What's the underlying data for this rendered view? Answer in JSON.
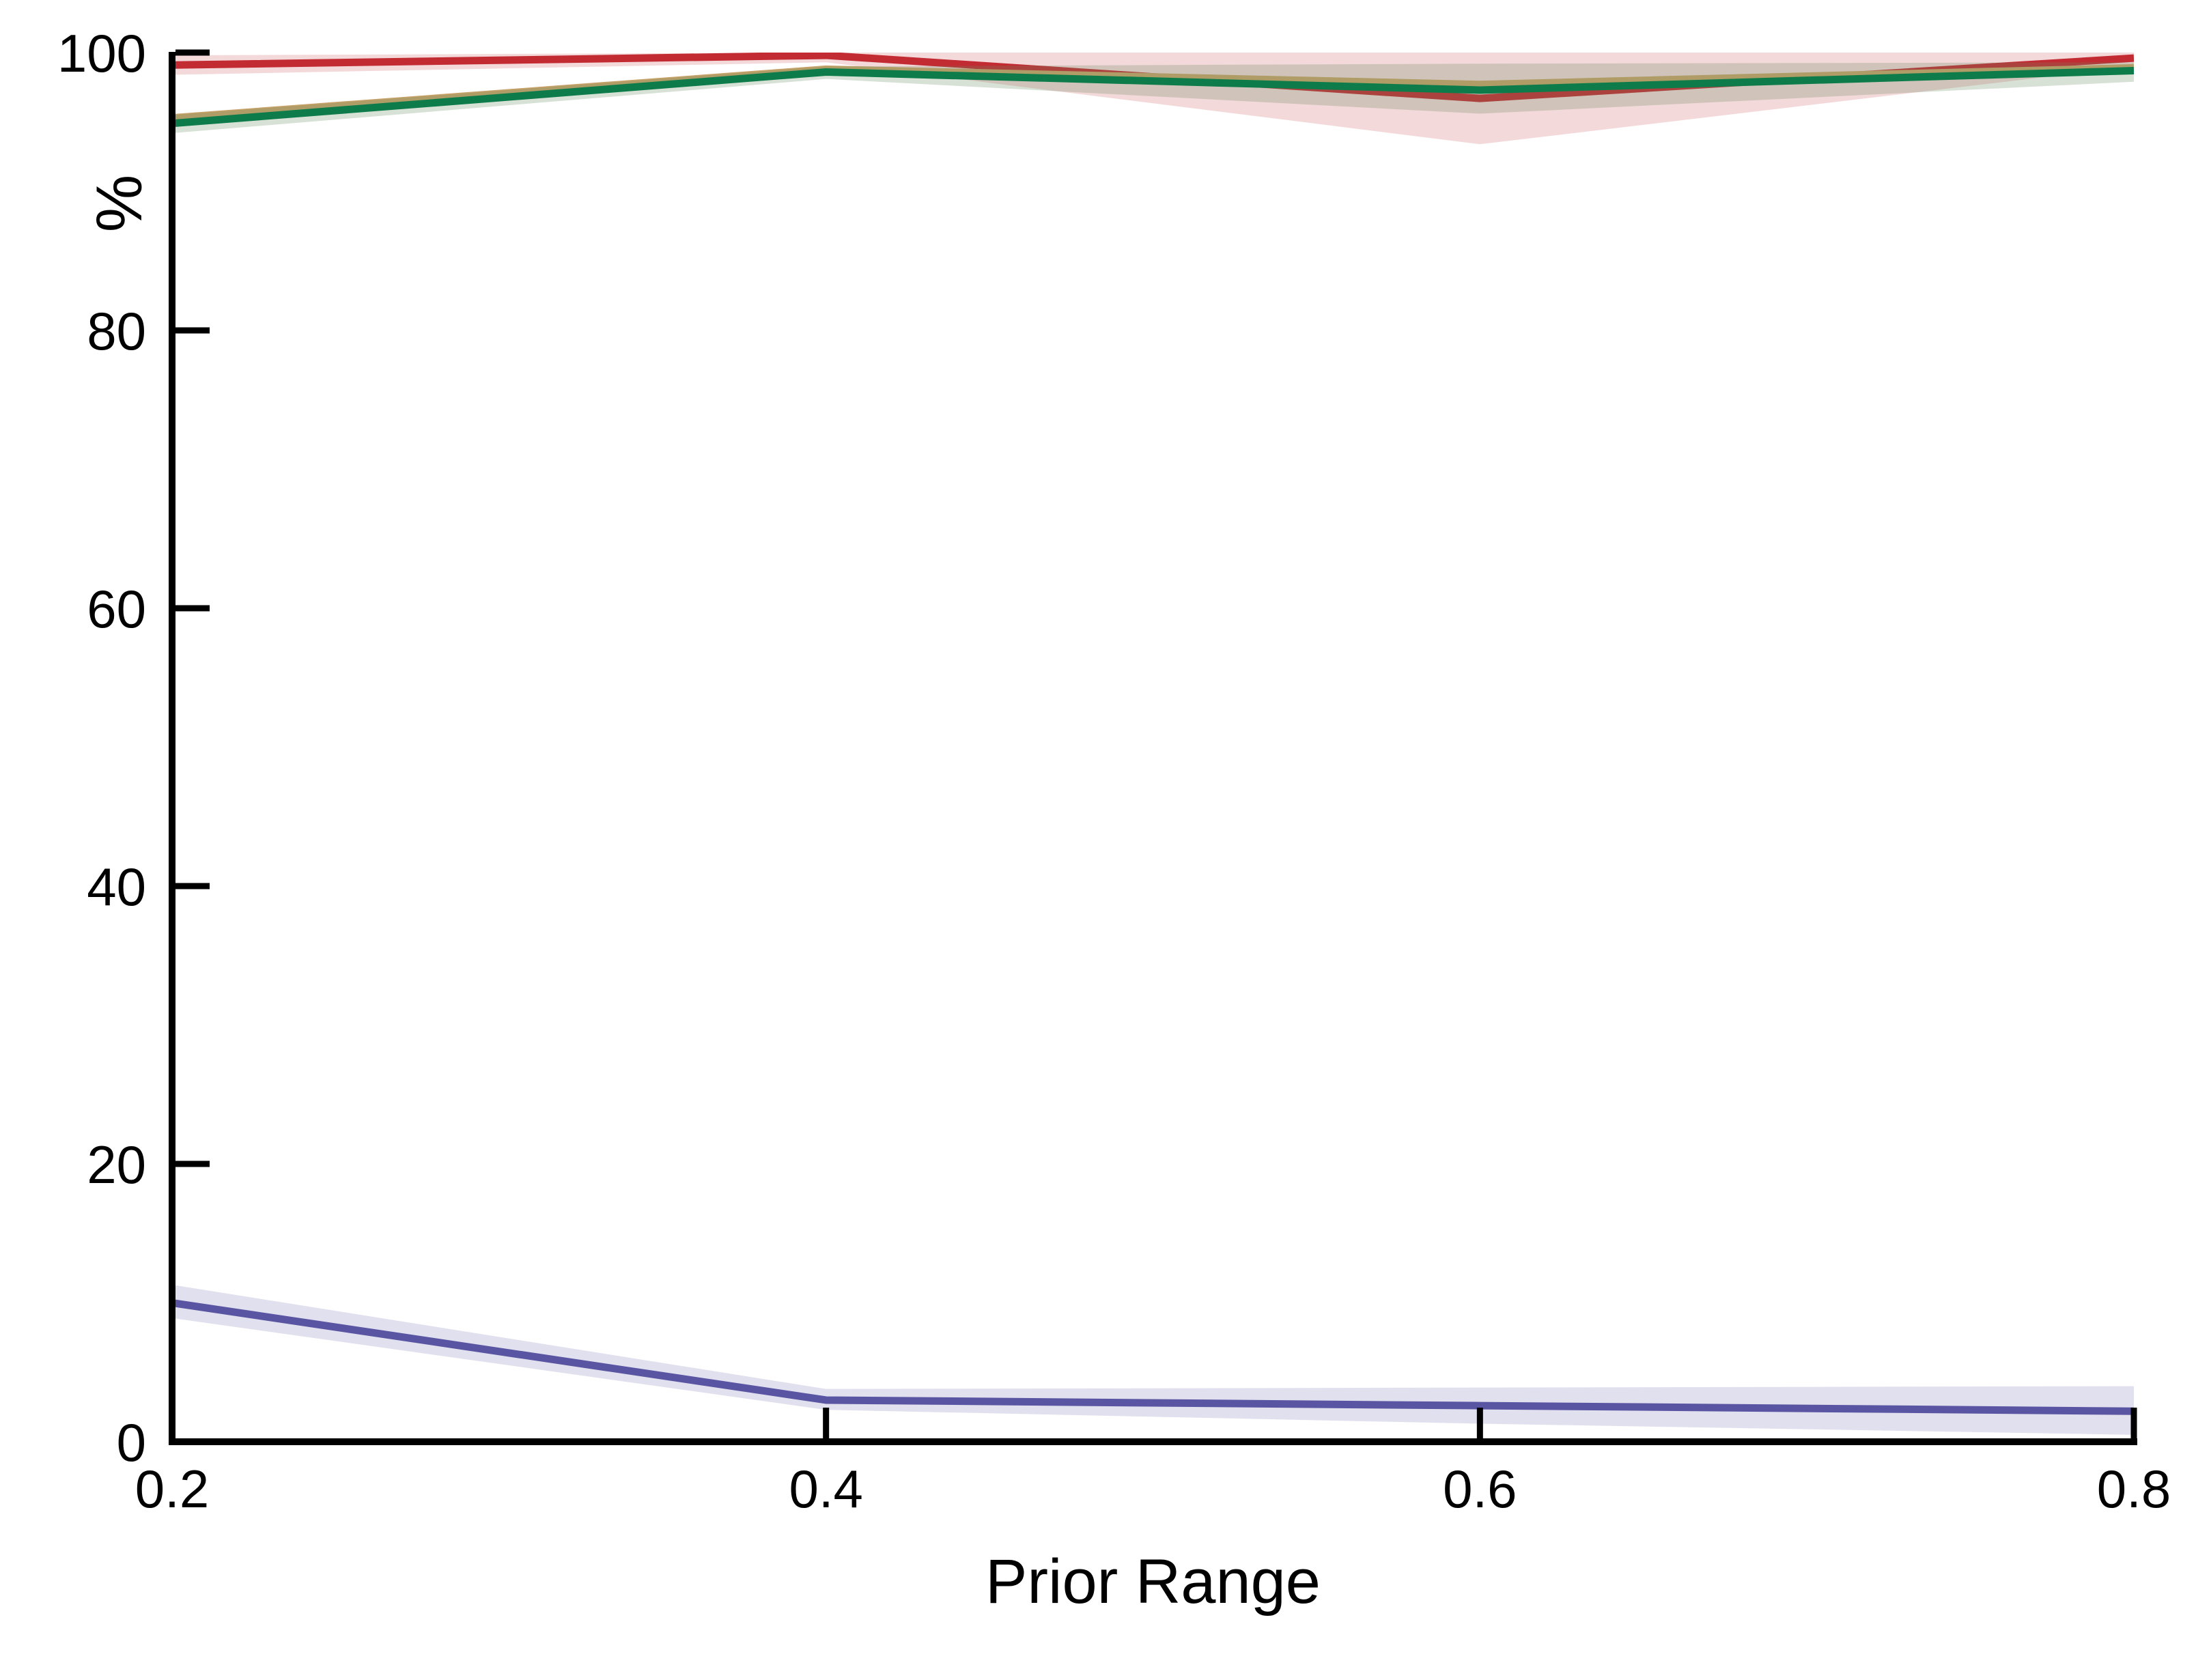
{
  "chart_data": {
    "type": "line",
    "title": "",
    "xlabel": "Prior Range",
    "ylabel": "%",
    "xlim": [
      0.2,
      0.8
    ],
    "ylim": [
      0,
      100
    ],
    "grid": false,
    "legend": "none",
    "axis_color": "#000000",
    "background_color": "#ffffff",
    "x": [
      0.2,
      0.4,
      0.6,
      0.8
    ],
    "xtick_labels": [
      "0.2",
      "0.4",
      "0.6",
      "0.8"
    ],
    "yticks": [
      0,
      20,
      40,
      60,
      80,
      100
    ],
    "ytick_labels": [
      "0",
      "20",
      "40",
      "60",
      "80",
      "100"
    ],
    "series": [
      {
        "id": "red",
        "color": "#c32b33",
        "band_color": "rgba(195,43,51,0.18)",
        "values": [
          99.1,
          99.8,
          96.7,
          99.6
        ],
        "band_low": [
          98.4,
          99.3,
          93.4,
          99.0
        ],
        "band_high": [
          99.8,
          100,
          100,
          100
        ]
      },
      {
        "id": "tan",
        "color": "#c8a36a",
        "values": [
          95.3,
          98.8,
          97.7,
          98.9
        ]
      },
      {
        "id": "green",
        "color": "#0e7c4a",
        "band_color": "rgba(100,136,92,0.25)",
        "values": [
          94.9,
          98.6,
          97.3,
          98.7
        ],
        "band_low": [
          94.2,
          98.1,
          95.6,
          97.9
        ],
        "band_high": [
          95.5,
          99.0,
          99.2,
          99.3
        ]
      },
      {
        "id": "purple",
        "color": "#5a55a2",
        "band_color": "rgba(90,85,162,0.18)",
        "values": [
          10.0,
          3.0,
          2.6,
          2.2
        ],
        "band_low": [
          8.9,
          2.3,
          1.3,
          0.5
        ],
        "band_high": [
          11.3,
          3.8,
          3.9,
          4.0
        ]
      }
    ]
  }
}
